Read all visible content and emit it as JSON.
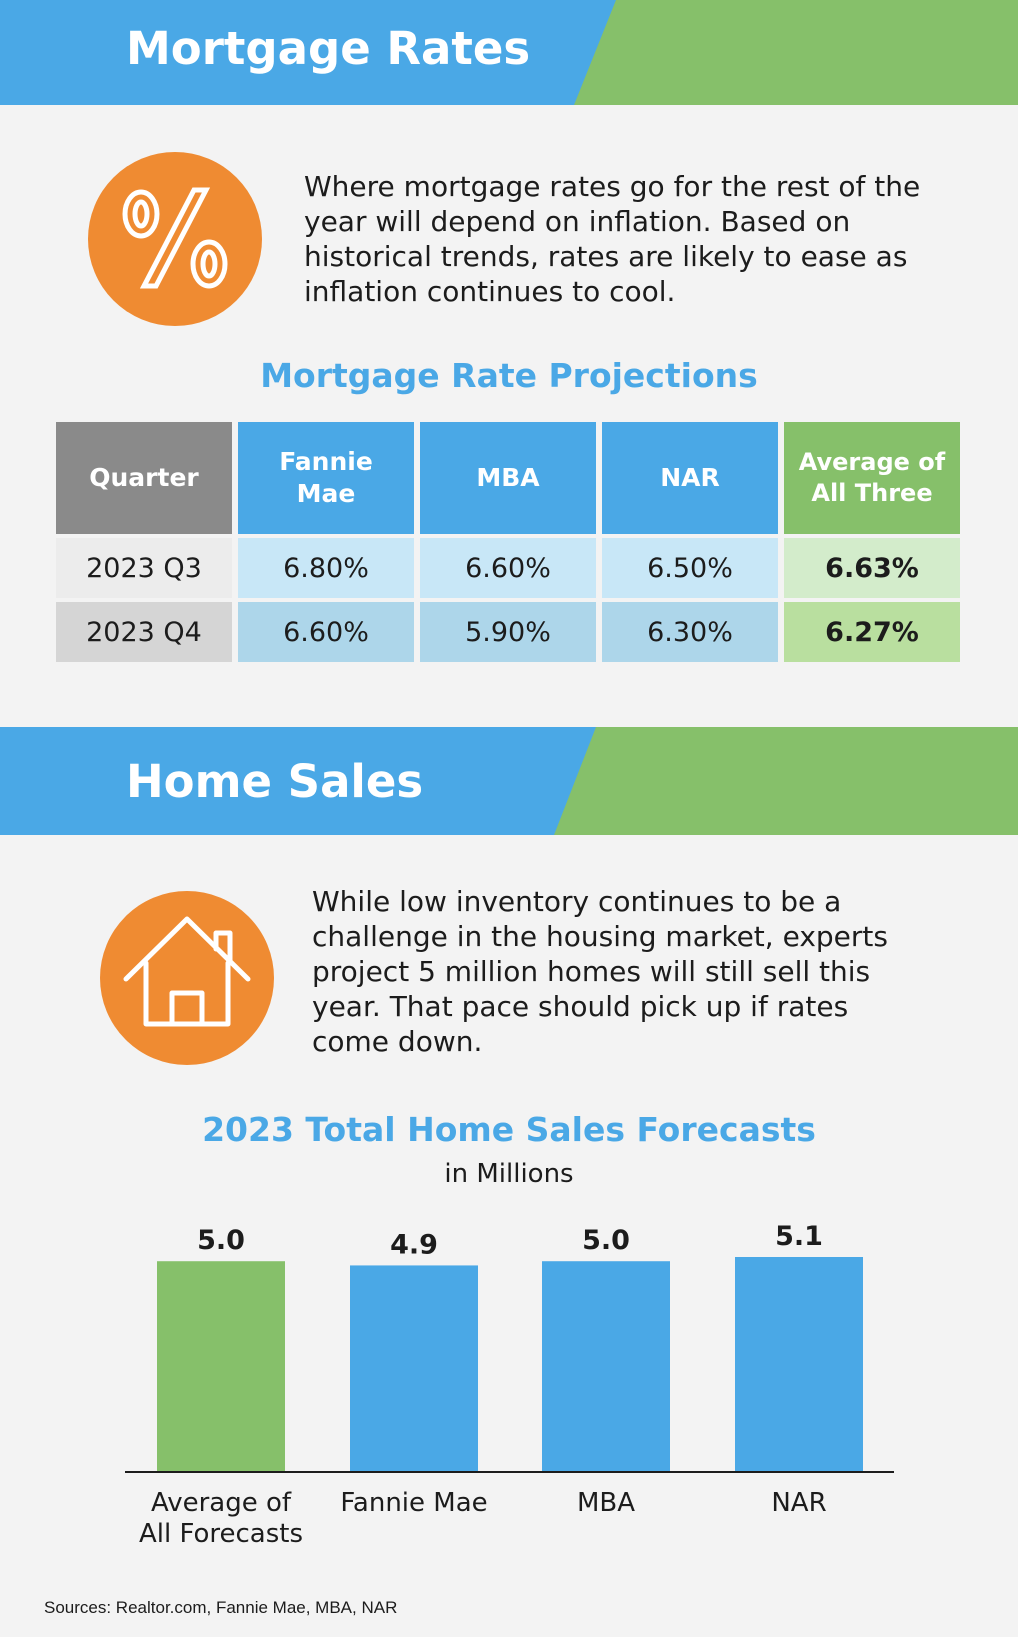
{
  "colors": {
    "blue": "#4aa8e6",
    "green": "#86c06a",
    "orange": "#ef8b32",
    "gray": "#8a8a8a"
  },
  "rates_section": {
    "title": "Mortgage Rates",
    "icon": "percent-icon",
    "intro": "Where mortgage rates go for the rest of the year will depend on inflation. Based on historical trends, rates are likely to ease as inflation continues to cool.",
    "table_title": "Mortgage Rate Projections",
    "columns": [
      "Quarter",
      "Fannie Mae",
      "MBA",
      "NAR",
      "Average of All Three"
    ],
    "rows": [
      [
        "2023 Q3",
        "6.80%",
        "6.60%",
        "6.50%",
        "6.63%"
      ],
      [
        "2023 Q4",
        "6.60%",
        "5.90%",
        "6.30%",
        "6.27%"
      ]
    ]
  },
  "sales_section": {
    "title": "Home Sales",
    "icon": "house-icon",
    "intro": "While low inventory continues to be a challenge in the housing market, experts project 5 million homes will still sell this year. That pace should pick up if rates come down."
  },
  "chart_data": {
    "type": "bar",
    "title": "2023 Total Home Sales Forecasts",
    "subtitle": "in Millions",
    "categories": [
      "Average of All Forecasts",
      "Fannie Mae",
      "MBA",
      "NAR"
    ],
    "values": [
      5.0,
      4.9,
      5.0,
      5.1
    ],
    "value_labels": [
      "5.0",
      "4.9",
      "5.0",
      "5.1"
    ],
    "bar_colors": [
      "#86c06a",
      "#4aa8e6",
      "#4aa8e6",
      "#4aa8e6"
    ],
    "xlabel": "",
    "ylabel": "",
    "ylim": [
      0,
      5.1
    ],
    "grid": false,
    "legend": "none"
  },
  "footer": {
    "sources": "Sources: Realtor.com, Fannie Mae, MBA, NAR"
  }
}
